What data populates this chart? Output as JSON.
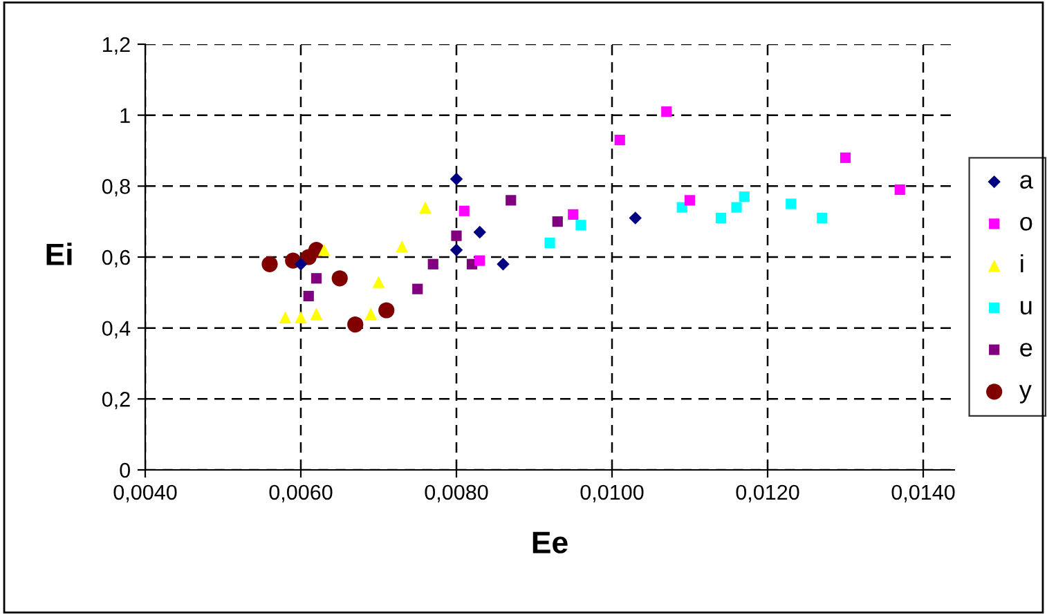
{
  "chart_data": {
    "type": "scatter",
    "xlabel": "Ee",
    "ylabel": "Ei",
    "xlim": [
      0.004,
      0.0144
    ],
    "ylim": [
      0,
      1.2
    ],
    "xticks": [
      {
        "value": 0.004,
        "label": "0,0040"
      },
      {
        "value": 0.006,
        "label": "0,0060"
      },
      {
        "value": 0.008,
        "label": "0,0080"
      },
      {
        "value": 0.01,
        "label": "0,0100"
      },
      {
        "value": 0.012,
        "label": "0,0120"
      },
      {
        "value": 0.014,
        "label": "0,0140"
      }
    ],
    "yticks": [
      0,
      {
        "value": 0.2,
        "label": "0,2"
      },
      {
        "value": 0.4,
        "label": "0,4"
      },
      {
        "value": 0.6,
        "label": "0,6"
      },
      {
        "value": 0.8,
        "label": "0,8"
      },
      1,
      {
        "value": 1.2,
        "label": "1,2"
      }
    ],
    "grid": true,
    "legend": "right",
    "series": [
      {
        "name": "a",
        "color": "#000080",
        "marker": "diamond",
        "x": [
          0.008,
          0.0083,
          0.008,
          0.0086,
          0.006,
          0.0103
        ],
        "values": [
          0.82,
          0.67,
          0.62,
          0.58,
          0.58,
          0.71
        ]
      },
      {
        "name": "o",
        "color": "#ff00ff",
        "marker": "square",
        "x": [
          0.0081,
          0.0083,
          0.0095,
          0.0107,
          0.0101,
          0.011,
          0.013,
          0.0137
        ],
        "values": [
          0.73,
          0.59,
          0.72,
          1.01,
          0.93,
          0.76,
          0.88,
          0.79
        ]
      },
      {
        "name": "i",
        "color": "#ffff00",
        "marker": "triangle",
        "x": [
          0.0076,
          0.0073,
          0.007,
          0.0069,
          0.0063,
          0.0062,
          0.006,
          0.0058
        ],
        "values": [
          0.74,
          0.63,
          0.53,
          0.44,
          0.62,
          0.44,
          0.43,
          0.43
        ]
      },
      {
        "name": "u",
        "color": "#00ffff",
        "marker": "square",
        "x": [
          0.0092,
          0.0096,
          0.0109,
          0.0114,
          0.0116,
          0.0117,
          0.0123,
          0.0127
        ],
        "values": [
          0.64,
          0.69,
          0.74,
          0.71,
          0.74,
          0.77,
          0.75,
          0.71
        ]
      },
      {
        "name": "e",
        "color": "#800080",
        "marker": "square",
        "x": [
          0.0087,
          0.0093,
          0.008,
          0.0077,
          0.0082,
          0.0075,
          0.0062,
          0.0061
        ],
        "values": [
          0.76,
          0.7,
          0.66,
          0.58,
          0.58,
          0.51,
          0.54,
          0.49
        ]
      },
      {
        "name": "y",
        "color": "#800000",
        "marker": "circle",
        "x": [
          0.0056,
          0.0059,
          0.0061,
          0.0062,
          0.0065,
          0.0067,
          0.0071
        ],
        "values": [
          0.58,
          0.59,
          0.6,
          0.62,
          0.54,
          0.41,
          0.45
        ]
      }
    ]
  }
}
